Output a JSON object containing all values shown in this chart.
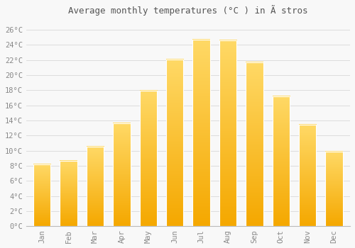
{
  "title": "Average monthly temperatures (°C ) in Ã stros",
  "months": [
    "Jan",
    "Feb",
    "Mar",
    "Apr",
    "May",
    "Jun",
    "Jul",
    "Aug",
    "Sep",
    "Oct",
    "Nov",
    "Dec"
  ],
  "values": [
    8.2,
    8.7,
    10.5,
    13.6,
    17.9,
    22.1,
    24.7,
    24.6,
    21.7,
    17.2,
    13.4,
    9.9
  ],
  "bar_color_bottom": "#F5A800",
  "bar_color_top": "#FFD966",
  "background_color": "#F8F8F8",
  "grid_color": "#DDDDDD",
  "yticks": [
    0,
    2,
    4,
    6,
    8,
    10,
    12,
    14,
    16,
    18,
    20,
    22,
    24,
    26
  ],
  "ylim": [
    0,
    27.5
  ],
  "title_fontsize": 9,
  "tick_fontsize": 7.5,
  "tick_font_color": "#888888",
  "title_color": "#555555"
}
